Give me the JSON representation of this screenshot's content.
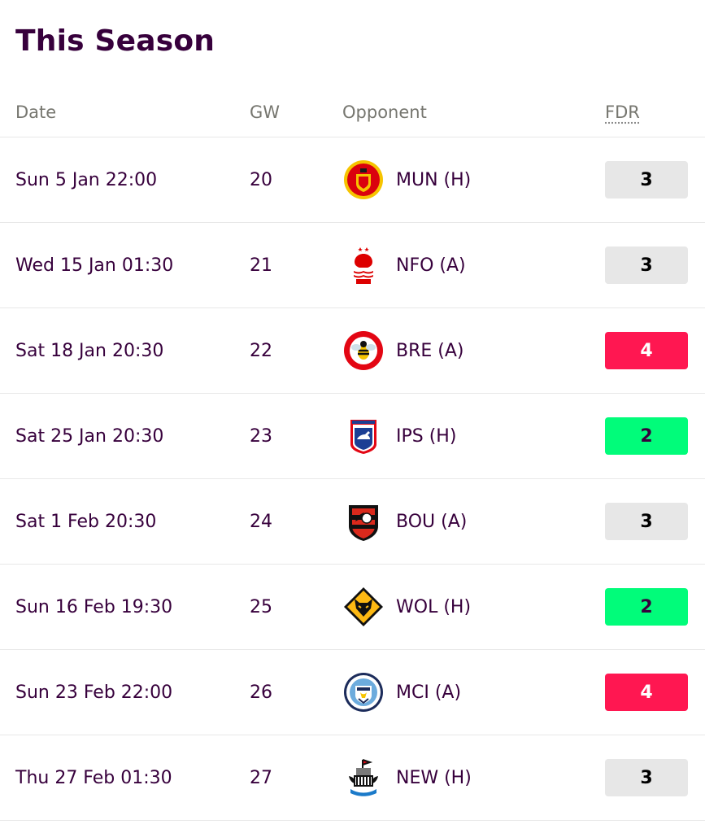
{
  "page": {
    "title": "This Season"
  },
  "table": {
    "headers": {
      "date": "Date",
      "gw": "GW",
      "opponent": "Opponent",
      "fdr": "FDR"
    },
    "rows": [
      {
        "date": "Sun 5 Jan 22:00",
        "gw": "20",
        "opponent": "MUN (H)",
        "fdr": "3",
        "crest_icon": "manchester-united-crest-icon"
      },
      {
        "date": "Wed 15 Jan 01:30",
        "gw": "21",
        "opponent": "NFO (A)",
        "fdr": "3",
        "crest_icon": "nottingham-forest-crest-icon"
      },
      {
        "date": "Sat 18 Jan 20:30",
        "gw": "22",
        "opponent": "BRE (A)",
        "fdr": "4",
        "crest_icon": "brentford-crest-icon"
      },
      {
        "date": "Sat 25 Jan 20:30",
        "gw": "23",
        "opponent": "IPS (H)",
        "fdr": "2",
        "crest_icon": "ipswich-town-crest-icon"
      },
      {
        "date": "Sat 1 Feb 20:30",
        "gw": "24",
        "opponent": "BOU (A)",
        "fdr": "3",
        "crest_icon": "bournemouth-crest-icon"
      },
      {
        "date": "Sun 16 Feb 19:30",
        "gw": "25",
        "opponent": "WOL (H)",
        "fdr": "2",
        "crest_icon": "wolves-crest-icon"
      },
      {
        "date": "Sun 23 Feb 22:00",
        "gw": "26",
        "opponent": "MCI (A)",
        "fdr": "4",
        "crest_icon": "manchester-city-crest-icon"
      },
      {
        "date": "Thu 27 Feb 01:30",
        "gw": "27",
        "opponent": "NEW (H)",
        "fdr": "3",
        "crest_icon": "newcastle-crest-icon"
      }
    ]
  },
  "colors": {
    "title": "#37003c",
    "header_text": "#76766f",
    "fdr_2_bg": "#01fc7a",
    "fdr_2_text": "#37003c",
    "fdr_3_bg": "#e7e7e7",
    "fdr_3_text": "#000000",
    "fdr_4_bg": "#ff1751",
    "fdr_4_text": "#ffffff"
  }
}
